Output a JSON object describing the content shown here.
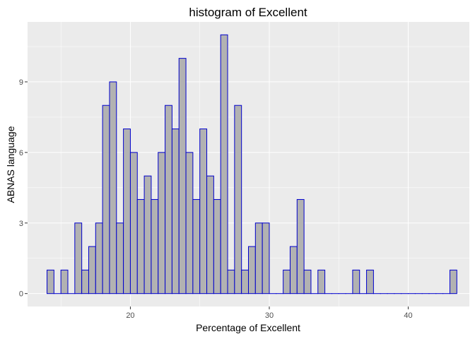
{
  "chart_data": {
    "type": "bar",
    "title": "histogram of Excellent",
    "xlabel": "Percentage of Excellent",
    "ylabel": "ABNAS language",
    "bin_width": 0.5,
    "bin_starts": [
      14.0,
      14.5,
      15.0,
      15.5,
      16.0,
      16.5,
      17.0,
      17.5,
      18.0,
      18.5,
      19.0,
      19.5,
      20.0,
      20.5,
      21.0,
      21.5,
      22.0,
      22.5,
      23.0,
      23.5,
      24.0,
      24.5,
      25.0,
      25.5,
      26.0,
      26.5,
      27.0,
      27.5,
      28.0,
      28.5,
      29.0,
      29.5,
      30.0,
      30.5,
      31.0,
      31.5,
      32.0,
      32.5,
      33.0,
      33.5,
      34.0,
      34.5,
      35.0,
      35.5,
      36.0,
      36.5,
      37.0,
      37.5,
      38.0,
      38.5,
      39.0,
      39.5,
      40.0,
      40.5,
      41.0,
      41.5,
      42.0,
      42.5,
      43.0
    ],
    "values": [
      1,
      0,
      1,
      0,
      3,
      1,
      2,
      3,
      8,
      9,
      3,
      7,
      6,
      4,
      5,
      4,
      6,
      8,
      7,
      10,
      6,
      4,
      7,
      5,
      4,
      11,
      1,
      8,
      1,
      2,
      3,
      3,
      0,
      0,
      1,
      2,
      4,
      1,
      0,
      1,
      0,
      0,
      0,
      0,
      1,
      0,
      1,
      0,
      0,
      0,
      0,
      0,
      0,
      0,
      0,
      0,
      0,
      0,
      1
    ],
    "xlim": [
      12.6,
      44.4
    ],
    "ylim": [
      -0.55,
      11.55
    ],
    "x_ticks": [
      20,
      30,
      40
    ],
    "y_ticks": [
      0,
      3,
      6,
      9
    ],
    "grid": true,
    "colors": {
      "panel": "#ebebeb",
      "grid_major": "#ffffff",
      "bar_fill": "#b2b2b2",
      "bar_outline": "#0000cc"
    }
  }
}
